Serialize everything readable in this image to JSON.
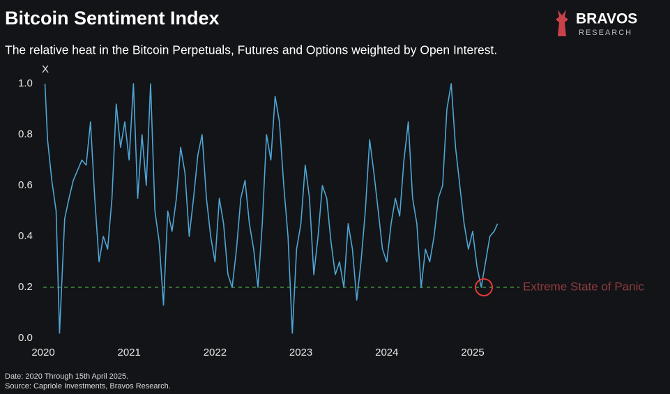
{
  "chart_data": {
    "type": "line",
    "title": "Bitcoin Sentiment Index",
    "subtitle": "The relative heat in the Bitcoin Perpetuals, Futures and Options weighted by Open Interest.",
    "y_label": "X",
    "logo": {
      "name": "BRAVOS",
      "tagline": "RESEARCH"
    },
    "notes": [
      "Date: 2020 Through 15th April 2025.",
      "Source: Capriole Investments, Bravos Research."
    ],
    "threshold": {
      "value": 0.2,
      "label": "Extreme State of Panic",
      "color": "#3f8f3a",
      "label_color": "#8e3b40"
    },
    "highlight": {
      "x": 2025.13,
      "y": 0.2,
      "color": "#e53935"
    },
    "x": [
      2020.02,
      2020.05,
      2020.1,
      2020.15,
      2020.19,
      2020.25,
      2020.3,
      2020.35,
      2020.4,
      2020.45,
      2020.5,
      2020.55,
      2020.6,
      2020.65,
      2020.7,
      2020.75,
      2020.8,
      2020.85,
      2020.9,
      2020.95,
      2021.0,
      2021.05,
      2021.1,
      2021.15,
      2021.2,
      2021.25,
      2021.3,
      2021.35,
      2021.4,
      2021.45,
      2021.5,
      2021.55,
      2021.6,
      2021.65,
      2021.7,
      2021.75,
      2021.8,
      2021.85,
      2021.9,
      2021.95,
      2022.0,
      2022.05,
      2022.1,
      2022.15,
      2022.2,
      2022.25,
      2022.3,
      2022.35,
      2022.4,
      2022.45,
      2022.5,
      2022.55,
      2022.6,
      2022.65,
      2022.7,
      2022.75,
      2022.8,
      2022.85,
      2022.9,
      2022.95,
      2023.0,
      2023.05,
      2023.1,
      2023.15,
      2023.2,
      2023.25,
      2023.3,
      2023.35,
      2023.4,
      2023.45,
      2023.5,
      2023.55,
      2023.6,
      2023.65,
      2023.7,
      2023.75,
      2023.8,
      2023.85,
      2023.9,
      2023.95,
      2024.0,
      2024.05,
      2024.1,
      2024.15,
      2024.2,
      2024.25,
      2024.3,
      2024.35,
      2024.4,
      2024.45,
      2024.5,
      2024.55,
      2024.6,
      2024.65,
      2024.7,
      2024.75,
      2024.8,
      2024.85,
      2024.9,
      2024.95,
      2025.0,
      2025.05,
      2025.1,
      2025.15,
      2025.2,
      2025.25,
      2025.29
    ],
    "series": [
      {
        "name": "Bitcoin Sentiment Index",
        "color": "#4ea6d6",
        "values": [
          1.0,
          0.78,
          0.62,
          0.5,
          0.02,
          0.47,
          0.55,
          0.62,
          0.66,
          0.7,
          0.68,
          0.85,
          0.55,
          0.3,
          0.4,
          0.35,
          0.55,
          0.92,
          0.75,
          0.85,
          0.7,
          1.0,
          0.55,
          0.8,
          0.6,
          1.0,
          0.5,
          0.38,
          0.13,
          0.5,
          0.42,
          0.55,
          0.75,
          0.65,
          0.4,
          0.55,
          0.72,
          0.8,
          0.55,
          0.4,
          0.3,
          0.55,
          0.45,
          0.25,
          0.2,
          0.35,
          0.55,
          0.62,
          0.45,
          0.35,
          0.2,
          0.45,
          0.8,
          0.7,
          0.95,
          0.85,
          0.6,
          0.4,
          0.02,
          0.35,
          0.45,
          0.68,
          0.55,
          0.25,
          0.4,
          0.6,
          0.55,
          0.38,
          0.25,
          0.3,
          0.2,
          0.45,
          0.35,
          0.15,
          0.3,
          0.5,
          0.78,
          0.65,
          0.5,
          0.35,
          0.3,
          0.45,
          0.55,
          0.48,
          0.7,
          0.85,
          0.55,
          0.45,
          0.2,
          0.35,
          0.3,
          0.4,
          0.55,
          0.6,
          0.9,
          1.0,
          0.75,
          0.6,
          0.45,
          0.35,
          0.42,
          0.28,
          0.2,
          0.3,
          0.4,
          0.42,
          0.45
        ]
      }
    ],
    "xlim": [
      2020,
      2025.35
    ],
    "ylim": [
      0,
      1
    ],
    "xticks": [
      2020,
      2021,
      2022,
      2023,
      2024,
      2025
    ],
    "yticks": [
      {
        "value": 0,
        "label": "0.0"
      },
      0.2,
      0.4,
      0.6,
      0.8,
      {
        "value": 1,
        "label": "1.0"
      }
    ],
    "grid": false
  }
}
